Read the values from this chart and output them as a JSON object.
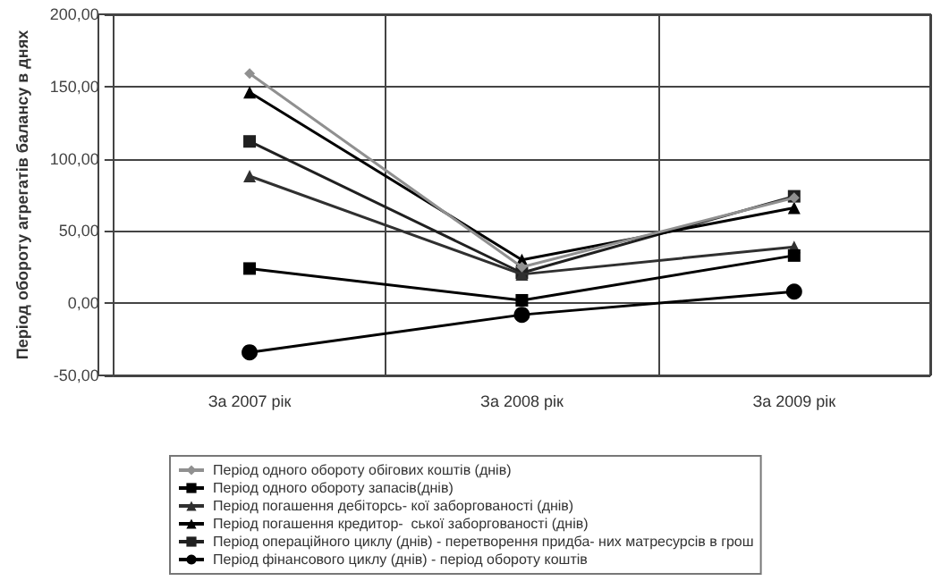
{
  "chart_data": {
    "type": "line",
    "ylabel": "Період обороту агрегатів балансу в днях",
    "categories": [
      "За 2007 рік",
      "За 2008 рік",
      "За 2009 рік"
    ],
    "series": [
      {
        "name": "Період одного обороту обігових коштів (днів)",
        "color": "#909090",
        "marker": "diamond",
        "values": [
          159,
          25,
          73
        ]
      },
      {
        "name": "Період одного обороту запасів(днів)",
        "color": "#000000",
        "marker": "square",
        "values": [
          24,
          2,
          33
        ]
      },
      {
        "name": "Період погашення дебіторсь- кої заборгованості (днів)",
        "color": "#303030",
        "marker": "triangle",
        "values": [
          88,
          20,
          39
        ]
      },
      {
        "name": "Період погашення кредитор-  ської заборгованості (днів)",
        "color": "#000000",
        "marker": "triangle",
        "values": [
          146,
          30,
          66
        ]
      },
      {
        "name": "Період операційного циклу (днів) - перетворення придба- них матресурсів в грош",
        "color": "#202020",
        "marker": "square",
        "values": [
          112,
          21,
          74
        ]
      },
      {
        "name": "Період фінансового циклу (днів) - період обороту коштів",
        "color": "#000000",
        "marker": "circle",
        "values": [
          -34,
          -8,
          8
        ]
      }
    ],
    "ylim": [
      -50,
      200
    ],
    "yticks": [
      {
        "value": -50,
        "label": "-50,00"
      },
      {
        "value": 0,
        "label": "0,00"
      },
      {
        "value": 50,
        "label": "50,00"
      },
      {
        "value": 100,
        "label": "100,00"
      },
      {
        "value": 150,
        "label": "150,00"
      },
      {
        "value": 200,
        "label": "200,00"
      }
    ],
    "grid": true,
    "legend": "bottom"
  }
}
